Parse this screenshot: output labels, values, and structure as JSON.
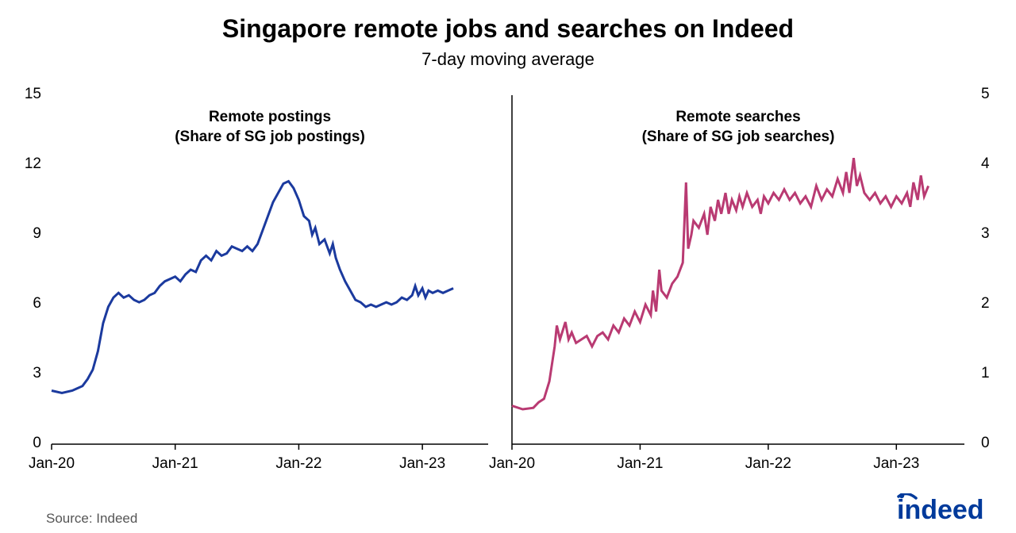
{
  "title": "Singapore remote jobs and searches on Indeed",
  "subtitle": "7-day moving average",
  "source": "Source: Indeed",
  "logo_text": "indeed",
  "logo_color": "#003a9b",
  "background_color": "#ffffff",
  "axis_color": "#000000",
  "tick_fontsize": 19,
  "title_fontsize": 32,
  "subtitle_fontsize": 22,
  "label_fontsize": 19,
  "left_panel": {
    "label_line1": "Remote postings",
    "label_line2": "(Share of SG job postings)",
    "color": "#1b3a9e",
    "line_width": 3,
    "ylim": [
      0,
      15
    ],
    "yticks": [
      0,
      3,
      6,
      9,
      12,
      15
    ],
    "xticks": [
      "Jan-20",
      "Jan-21",
      "Jan-22",
      "Jan-23"
    ],
    "xrange_months": 42,
    "series": [
      [
        0,
        2.3
      ],
      [
        1,
        2.2
      ],
      [
        2,
        2.3
      ],
      [
        2.5,
        2.4
      ],
      [
        3,
        2.5
      ],
      [
        3.5,
        2.8
      ],
      [
        4,
        3.2
      ],
      [
        4.5,
        4.0
      ],
      [
        5,
        5.2
      ],
      [
        5.5,
        5.9
      ],
      [
        6,
        6.3
      ],
      [
        6.5,
        6.5
      ],
      [
        7,
        6.3
      ],
      [
        7.5,
        6.4
      ],
      [
        8,
        6.2
      ],
      [
        8.5,
        6.1
      ],
      [
        9,
        6.2
      ],
      [
        9.5,
        6.4
      ],
      [
        10,
        6.5
      ],
      [
        10.5,
        6.8
      ],
      [
        11,
        7.0
      ],
      [
        12,
        7.2
      ],
      [
        12.5,
        7.0
      ],
      [
        13,
        7.3
      ],
      [
        13.5,
        7.5
      ],
      [
        14,
        7.4
      ],
      [
        14.5,
        7.9
      ],
      [
        15,
        8.1
      ],
      [
        15.5,
        7.9
      ],
      [
        16,
        8.3
      ],
      [
        16.5,
        8.1
      ],
      [
        17,
        8.2
      ],
      [
        17.5,
        8.5
      ],
      [
        18,
        8.4
      ],
      [
        18.5,
        8.3
      ],
      [
        19,
        8.5
      ],
      [
        19.5,
        8.3
      ],
      [
        20,
        8.6
      ],
      [
        20.5,
        9.2
      ],
      [
        21,
        9.8
      ],
      [
        21.5,
        10.4
      ],
      [
        22,
        10.8
      ],
      [
        22.5,
        11.2
      ],
      [
        23,
        11.3
      ],
      [
        23.5,
        11.0
      ],
      [
        24,
        10.5
      ],
      [
        24.5,
        9.8
      ],
      [
        25,
        9.6
      ],
      [
        25.3,
        9.0
      ],
      [
        25.6,
        9.3
      ],
      [
        26,
        8.6
      ],
      [
        26.5,
        8.8
      ],
      [
        27,
        8.2
      ],
      [
        27.3,
        8.6
      ],
      [
        27.6,
        8.0
      ],
      [
        28,
        7.5
      ],
      [
        28.5,
        7.0
      ],
      [
        29,
        6.6
      ],
      [
        29.5,
        6.2
      ],
      [
        30,
        6.1
      ],
      [
        30.5,
        5.9
      ],
      [
        31,
        6.0
      ],
      [
        31.5,
        5.9
      ],
      [
        32,
        6.0
      ],
      [
        32.5,
        6.1
      ],
      [
        33,
        6.0
      ],
      [
        33.5,
        6.1
      ],
      [
        34,
        6.3
      ],
      [
        34.5,
        6.2
      ],
      [
        35,
        6.4
      ],
      [
        35.3,
        6.8
      ],
      [
        35.6,
        6.4
      ],
      [
        36,
        6.7
      ],
      [
        36.3,
        6.3
      ],
      [
        36.6,
        6.6
      ],
      [
        37,
        6.5
      ],
      [
        37.5,
        6.6
      ],
      [
        38,
        6.5
      ],
      [
        38.5,
        6.6
      ],
      [
        39,
        6.7
      ]
    ]
  },
  "right_panel": {
    "label_line1": "Remote searches",
    "label_line2": "(Share of SG job searches)",
    "color": "#b93a72",
    "line_width": 3,
    "ylim": [
      0,
      5
    ],
    "yticks": [
      0,
      1,
      2,
      3,
      4,
      5
    ],
    "xticks": [
      "Jan-20",
      "Jan-21",
      "Jan-22",
      "Jan-23"
    ],
    "xrange_months": 42,
    "series": [
      [
        0,
        0.55
      ],
      [
        1,
        0.5
      ],
      [
        2,
        0.52
      ],
      [
        2.5,
        0.6
      ],
      [
        3,
        0.65
      ],
      [
        3.5,
        0.9
      ],
      [
        4,
        1.4
      ],
      [
        4.2,
        1.7
      ],
      [
        4.5,
        1.5
      ],
      [
        5,
        1.75
      ],
      [
        5.3,
        1.5
      ],
      [
        5.6,
        1.6
      ],
      [
        6,
        1.45
      ],
      [
        6.5,
        1.5
      ],
      [
        7,
        1.55
      ],
      [
        7.5,
        1.4
      ],
      [
        8,
        1.55
      ],
      [
        8.5,
        1.6
      ],
      [
        9,
        1.5
      ],
      [
        9.5,
        1.7
      ],
      [
        10,
        1.6
      ],
      [
        10.5,
        1.8
      ],
      [
        11,
        1.7
      ],
      [
        11.5,
        1.9
      ],
      [
        12,
        1.75
      ],
      [
        12.5,
        2.0
      ],
      [
        13,
        1.85
      ],
      [
        13.2,
        2.2
      ],
      [
        13.5,
        1.9
      ],
      [
        13.8,
        2.5
      ],
      [
        14,
        2.2
      ],
      [
        14.5,
        2.1
      ],
      [
        15,
        2.3
      ],
      [
        15.5,
        2.4
      ],
      [
        16,
        2.6
      ],
      [
        16.3,
        3.75
      ],
      [
        16.5,
        2.8
      ],
      [
        16.8,
        3.0
      ],
      [
        17,
        3.2
      ],
      [
        17.5,
        3.1
      ],
      [
        18,
        3.3
      ],
      [
        18.3,
        3.0
      ],
      [
        18.6,
        3.4
      ],
      [
        19,
        3.2
      ],
      [
        19.3,
        3.5
      ],
      [
        19.6,
        3.3
      ],
      [
        20,
        3.6
      ],
      [
        20.3,
        3.3
      ],
      [
        20.6,
        3.5
      ],
      [
        21,
        3.35
      ],
      [
        21.3,
        3.55
      ],
      [
        21.6,
        3.4
      ],
      [
        22,
        3.6
      ],
      [
        22.5,
        3.4
      ],
      [
        23,
        3.5
      ],
      [
        23.3,
        3.3
      ],
      [
        23.6,
        3.55
      ],
      [
        24,
        3.45
      ],
      [
        24.5,
        3.6
      ],
      [
        25,
        3.5
      ],
      [
        25.5,
        3.65
      ],
      [
        26,
        3.5
      ],
      [
        26.5,
        3.6
      ],
      [
        27,
        3.45
      ],
      [
        27.5,
        3.55
      ],
      [
        28,
        3.4
      ],
      [
        28.5,
        3.7
      ],
      [
        29,
        3.5
      ],
      [
        29.5,
        3.65
      ],
      [
        30,
        3.55
      ],
      [
        30.5,
        3.8
      ],
      [
        31,
        3.6
      ],
      [
        31.3,
        3.9
      ],
      [
        31.6,
        3.6
      ],
      [
        32,
        4.1
      ],
      [
        32.3,
        3.7
      ],
      [
        32.6,
        3.85
      ],
      [
        33,
        3.6
      ],
      [
        33.5,
        3.5
      ],
      [
        34,
        3.6
      ],
      [
        34.5,
        3.45
      ],
      [
        35,
        3.55
      ],
      [
        35.5,
        3.4
      ],
      [
        36,
        3.55
      ],
      [
        36.5,
        3.45
      ],
      [
        37,
        3.6
      ],
      [
        37.3,
        3.4
      ],
      [
        37.6,
        3.75
      ],
      [
        38,
        3.5
      ],
      [
        38.3,
        3.85
      ],
      [
        38.6,
        3.55
      ],
      [
        39,
        3.7
      ]
    ]
  }
}
